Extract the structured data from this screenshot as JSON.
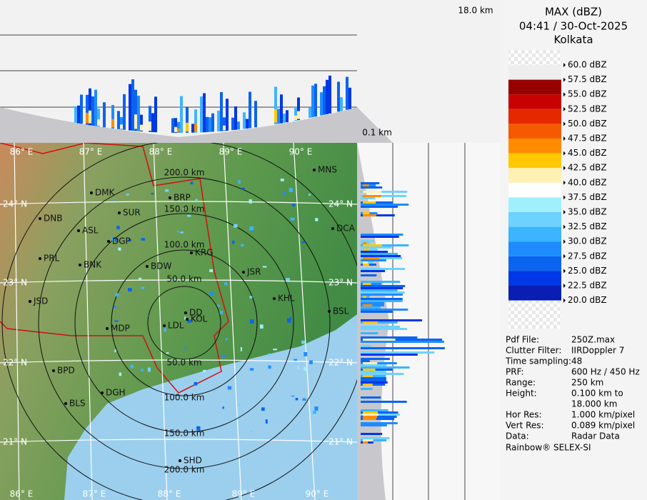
{
  "profile": {
    "top_height": "18.0 km",
    "bottom_height": "0.1 km"
  },
  "header": {
    "title": "MAX (dBZ)",
    "time": "04:41 / 30-Oct-2025",
    "station": "Kolkata"
  },
  "legend": {
    "labels": [
      "60.0 dBZ",
      "57.5 dBZ",
      "55.0 dBZ",
      "52.5 dBZ",
      "50.0 dBZ",
      "47.5 dBZ",
      "45.0 dBZ",
      "42.5 dBZ",
      "40.0 dBZ",
      "37.5 dBZ",
      "35.0 dBZ",
      "32.5 dBZ",
      "30.0 dBZ",
      "27.5 dBZ",
      "25.0 dBZ",
      "22.5 dBZ",
      "20.0 dBZ"
    ],
    "colors": [
      "#eeeeee",
      "#960000",
      "#c80000",
      "#e62800",
      "#f55a00",
      "#ff8c00",
      "#ffc800",
      "#fff0b4",
      "#ffffff",
      "#a0f0ff",
      "#6ed2ff",
      "#3cb4ff",
      "#1e8cff",
      "#0a64f0",
      "#0037e6",
      "#0a1eb4"
    ]
  },
  "info": [
    {
      "key": "Pdf File:",
      "value": [
        "250Z.max"
      ]
    },
    {
      "key": "Clutter Filter:",
      "value": [
        "IIRDoppler 7"
      ]
    },
    {
      "key": "Time sampling:",
      "value": [
        "48"
      ]
    },
    {
      "key": "PRF:",
      "value": [
        "600 Hz / 450 Hz"
      ]
    },
    {
      "key": "Range:",
      "value": [
        "250 km"
      ]
    },
    {
      "key": "Height:",
      "value": [
        "0.100 km to",
        "18.000 km"
      ]
    },
    {
      "key": "Hor Res:",
      "value": [
        "1.000 km/pixel"
      ]
    },
    {
      "key": "Vert Res:",
      "value": [
        "0.089 km/pixel"
      ]
    },
    {
      "key": "Data:",
      "value": [
        "Radar Data"
      ]
    }
  ],
  "footer": "Rainbow® SELEX-SI",
  "map": {
    "lon_top": [
      "86° E",
      "87° E",
      "88° E",
      "89° E",
      "90° E"
    ],
    "lon_bottom": [
      "86° E",
      "87° E",
      "88° E",
      "89° E",
      "90° E"
    ],
    "lat_left": [
      "24° N",
      "23° N",
      "22° N",
      "21° N"
    ],
    "lat_right": [
      "24° N",
      "23° N",
      "22° N",
      "21° N"
    ],
    "rings_north": [
      "200.0 km",
      "150.0 km",
      "100.0 km",
      "50.0 km"
    ],
    "rings_south": [
      "50.0 km",
      "100.0 km",
      "150.0 km",
      "200.0 km"
    ],
    "cities": [
      "MNS",
      "DMK",
      "BRP",
      "SUR",
      "DNB",
      "ASL",
      "DCA",
      "DGP",
      "KRG",
      "PRL",
      "BNK",
      "BDW",
      "JSR",
      "JSD",
      "KHL",
      "BSL",
      "DD",
      "KOL",
      "MDP",
      "LDL",
      "BPD",
      "DGH",
      "BLS",
      "SHD"
    ]
  }
}
